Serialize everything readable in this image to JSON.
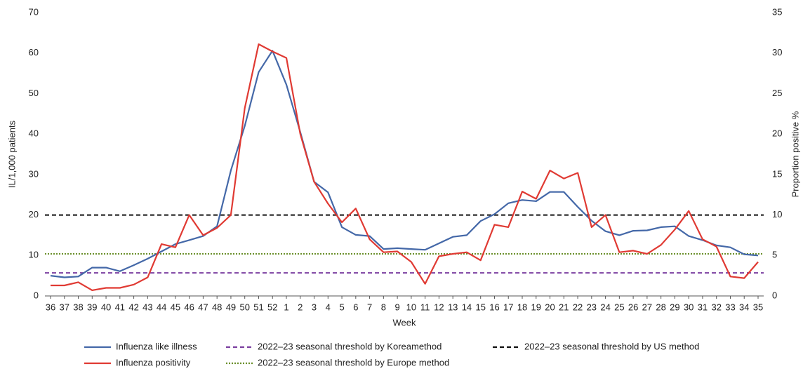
{
  "chart_data": {
    "type": "line",
    "x_label": "Week",
    "y_label": "IL/1,000 patients",
    "y2_label": "Proportion positive %",
    "categories": [
      "36",
      "37",
      "38",
      "39",
      "40",
      "41",
      "42",
      "43",
      "44",
      "45",
      "46",
      "47",
      "48",
      "49",
      "50",
      "51",
      "52",
      "1",
      "2",
      "3",
      "4",
      "5",
      "6",
      "7",
      "8",
      "9",
      "10",
      "11",
      "12",
      "13",
      "14",
      "15",
      "16",
      "17",
      "18",
      "19",
      "20",
      "21",
      "22",
      "23",
      "24",
      "25",
      "26",
      "27",
      "28",
      "29",
      "30",
      "31",
      "32",
      "33",
      "34",
      "35"
    ],
    "series": [
      {
        "name": "Influenza like illness",
        "color": "#4468a8",
        "axis": "y",
        "values": [
          5.0,
          4.6,
          4.8,
          7.0,
          7.0,
          6.1,
          7.6,
          9.2,
          11.0,
          12.8,
          13.8,
          14.8,
          17.2,
          31.0,
          42.0,
          55.3,
          60.6,
          52.2,
          40.5,
          28.2,
          25.6,
          17.0,
          15.1,
          14.8,
          11.6,
          11.8,
          11.6,
          11.4,
          13.0,
          14.6,
          15.0,
          18.5,
          20.2,
          22.9,
          23.7,
          23.4,
          25.7,
          25.7,
          22.0,
          18.6,
          16.0,
          15.0,
          16.1,
          16.2,
          17.0,
          17.2,
          14.8,
          13.8,
          12.5,
          12.0,
          10.3,
          10.0
        ]
      },
      {
        "name": "Influenza positivity",
        "color": "#e03a33",
        "axis": "y2",
        "values": [
          1.3,
          1.3,
          1.7,
          0.7,
          1.0,
          1.0,
          1.4,
          2.3,
          6.4,
          6.0,
          10.0,
          7.5,
          8.4,
          10.0,
          23.2,
          31.1,
          30.2,
          29.4,
          20.0,
          14.1,
          11.4,
          9.1,
          10.8,
          7.0,
          5.4,
          5.5,
          4.2,
          1.5,
          4.9,
          5.2,
          5.4,
          4.4,
          8.8,
          8.5,
          12.9,
          12.0,
          15.5,
          14.5,
          15.2,
          8.5,
          10.0,
          5.4,
          5.6,
          5.2,
          6.3,
          8.2,
          10.5,
          7.0,
          6.1,
          2.4,
          2.2,
          4.2
        ]
      }
    ],
    "thresholds": [
      {
        "name": "2022–23 seasonal threshold by Koreamethod",
        "color": "#7b3fa0",
        "dash": "dashed",
        "value": 5.7
      },
      {
        "name": "2022–23 seasonal threshold by US method",
        "color": "#111111",
        "dash": "dashed",
        "value": 20
      },
      {
        "name": "2022–23 seasonal threshold by Europe method",
        "color": "#6a8f2a",
        "dash": "dotted",
        "value": 10.4
      }
    ],
    "ylim": [
      0,
      70
    ],
    "yticks": [
      0,
      10,
      20,
      30,
      40,
      50,
      60,
      70
    ],
    "y2lim": [
      0,
      35
    ],
    "y2ticks": [
      0,
      5,
      10,
      15,
      20,
      25,
      30,
      35
    ]
  }
}
